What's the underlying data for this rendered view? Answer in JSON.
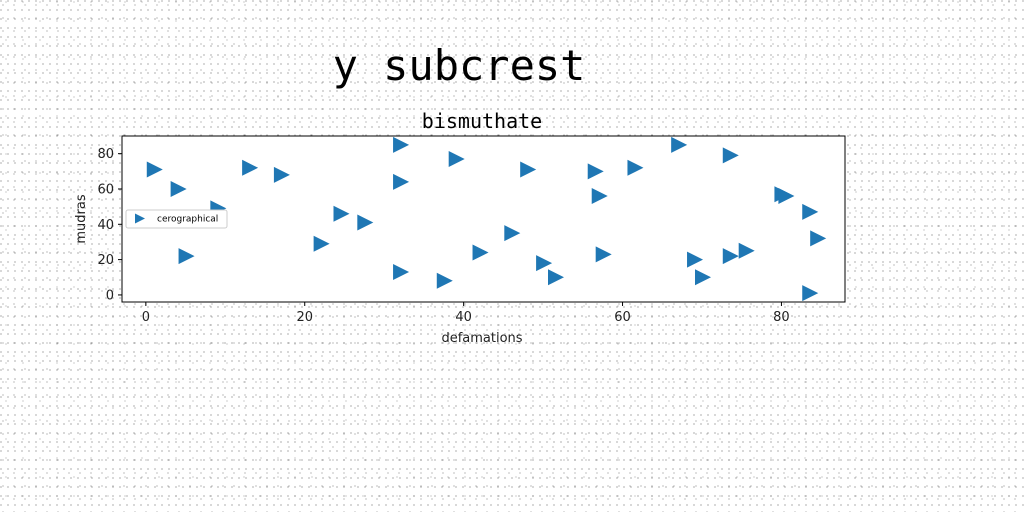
{
  "chart_data": {
    "type": "scatter",
    "suptitle": "y subcrest",
    "title": "bismuthate",
    "xlabel": "defamations",
    "ylabel": "mudras",
    "xlim": [
      -3,
      88
    ],
    "ylim": [
      -4,
      90
    ],
    "xticks": [
      0,
      20,
      40,
      60,
      80
    ],
    "yticks": [
      0,
      20,
      40,
      60,
      80
    ],
    "grid": false,
    "legend_position": "center-left",
    "marker": "triangle-right",
    "color": "#1f77b4",
    "series": [
      {
        "name": "cerographical",
        "points": [
          [
            1,
            71
          ],
          [
            4,
            60
          ],
          [
            5,
            22
          ],
          [
            9,
            49
          ],
          [
            13,
            72
          ],
          [
            17,
            68
          ],
          [
            22,
            29
          ],
          [
            24.5,
            46
          ],
          [
            27.5,
            41
          ],
          [
            32,
            85
          ],
          [
            32,
            64
          ],
          [
            32,
            13
          ],
          [
            37.5,
            8
          ],
          [
            39,
            77
          ],
          [
            42,
            24
          ],
          [
            46,
            35
          ],
          [
            48,
            71
          ],
          [
            50,
            18
          ],
          [
            51.5,
            10
          ],
          [
            56.5,
            70
          ],
          [
            57,
            56
          ],
          [
            57.5,
            23
          ],
          [
            61.5,
            72
          ],
          [
            67,
            85
          ],
          [
            69,
            20
          ],
          [
            70,
            10
          ],
          [
            73.5,
            79
          ],
          [
            73.5,
            22
          ],
          [
            75.5,
            25
          ],
          [
            80,
            57
          ],
          [
            80.5,
            56
          ],
          [
            83.5,
            47
          ],
          [
            83.5,
            1
          ],
          [
            84.5,
            32
          ]
        ]
      }
    ]
  }
}
